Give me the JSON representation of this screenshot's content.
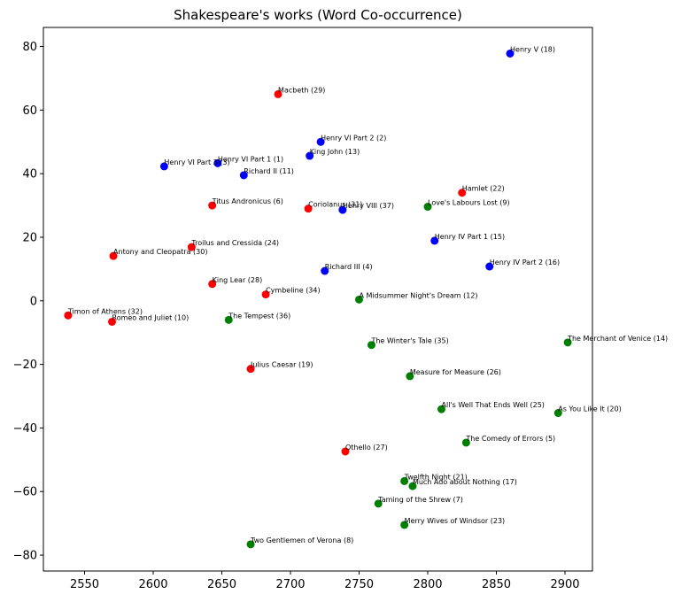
{
  "chart_data": {
    "type": "scatter",
    "title": "Shakespeare's works (Word Co-occurrence)",
    "xlabel": "",
    "ylabel": "",
    "xlim": [
      2520,
      2920
    ],
    "ylim": [
      -85,
      86
    ],
    "xticks": [
      2550,
      2600,
      2650,
      2700,
      2750,
      2800,
      2850,
      2900
    ],
    "yticks": [
      -80,
      -60,
      -40,
      -20,
      0,
      20,
      40,
      60,
      80
    ],
    "xtick_labels": [
      "2550",
      "2600",
      "2650",
      "2700",
      "2750",
      "2800",
      "2850",
      "2900"
    ],
    "ytick_labels": [
      "−80",
      "−60",
      "−40",
      "−20",
      "0",
      "20",
      "40",
      "60",
      "80"
    ],
    "grid": false,
    "legend": false,
    "colors": {
      "blue": "#0000ff",
      "red": "#ff0000",
      "green": "#008000"
    },
    "points": [
      {
        "label": "Henry V (18)",
        "x": 2860,
        "y": 77.8,
        "color": "blue"
      },
      {
        "label": "Macbeth (29)",
        "x": 2691,
        "y": 65,
        "color": "red"
      },
      {
        "label": "Henry VI Part 2 (2)",
        "x": 2722,
        "y": 50,
        "color": "blue"
      },
      {
        "label": "King John (13)",
        "x": 2714,
        "y": 45.6,
        "color": "blue"
      },
      {
        "label": "Henry VI Part 1 (1)",
        "x": 2647,
        "y": 43.3,
        "color": "blue"
      },
      {
        "label": "Henry VI Part 3 (3)",
        "x": 2608,
        "y": 42.3,
        "color": "blue"
      },
      {
        "label": "Richard II (11)",
        "x": 2666,
        "y": 39.5,
        "color": "blue"
      },
      {
        "label": "Hamlet (22)",
        "x": 2825,
        "y": 34,
        "color": "red"
      },
      {
        "label": "Titus Andronicus (6)",
        "x": 2643,
        "y": 30,
        "color": "red"
      },
      {
        "label": "Coriolanus (31)",
        "x": 2713,
        "y": 29,
        "color": "red"
      },
      {
        "label": "Henry VIII (37)",
        "x": 2738,
        "y": 28.6,
        "color": "blue"
      },
      {
        "label": "Love's Labours Lost (9)",
        "x": 2800,
        "y": 29.6,
        "color": "green"
      },
      {
        "label": "Henry IV Part 1 (15)",
        "x": 2805,
        "y": 18.9,
        "color": "blue"
      },
      {
        "label": "Troilus and Cressida (24)",
        "x": 2628,
        "y": 16.9,
        "color": "red"
      },
      {
        "label": "Antony and Cleopatra (30)",
        "x": 2571,
        "y": 14.1,
        "color": "red"
      },
      {
        "label": "Henry IV Part 2 (16)",
        "x": 2845,
        "y": 10.8,
        "color": "blue"
      },
      {
        "label": "Richard III (4)",
        "x": 2725,
        "y": 9.4,
        "color": "blue"
      },
      {
        "label": "King Lear (28)",
        "x": 2643,
        "y": 5.3,
        "color": "red"
      },
      {
        "label": "Cymbeline (34)",
        "x": 2682,
        "y": 2,
        "color": "red"
      },
      {
        "label": "A Midsummer Night's Dream (12)",
        "x": 2750,
        "y": 0.4,
        "color": "green"
      },
      {
        "label": "Timon of Athens (32)",
        "x": 2538,
        "y": -4.6,
        "color": "red"
      },
      {
        "label": "Romeo and Juliet (10)",
        "x": 2570,
        "y": -6.6,
        "color": "red"
      },
      {
        "label": "The Tempest (36)",
        "x": 2655,
        "y": -6,
        "color": "green"
      },
      {
        "label": "The Winter's Tale (35)",
        "x": 2759,
        "y": -13.9,
        "color": "green"
      },
      {
        "label": "The Merchant of Venice (14)",
        "x": 2902,
        "y": -13.1,
        "color": "green"
      },
      {
        "label": "Julius Caesar (19)",
        "x": 2671,
        "y": -21.4,
        "color": "red"
      },
      {
        "label": "Measure for Measure (26)",
        "x": 2787,
        "y": -23.7,
        "color": "green"
      },
      {
        "label": "All's Well That Ends Well (25)",
        "x": 2810,
        "y": -34.1,
        "color": "green"
      },
      {
        "label": "As You Like It (20)",
        "x": 2895,
        "y": -35.3,
        "color": "green"
      },
      {
        "label": "The Comedy of Errors (5)",
        "x": 2828,
        "y": -44.6,
        "color": "green"
      },
      {
        "label": "Othello (27)",
        "x": 2740,
        "y": -47.4,
        "color": "red"
      },
      {
        "label": "Twelfth Night (21)",
        "x": 2783,
        "y": -56.7,
        "color": "green"
      },
      {
        "label": "Much Ado about Nothing (17)",
        "x": 2789,
        "y": -58.3,
        "color": "green"
      },
      {
        "label": "Taming of the Shrew (7)",
        "x": 2764,
        "y": -63.8,
        "color": "green"
      },
      {
        "label": "Merry Wives of Windsor (23)",
        "x": 2783,
        "y": -70.5,
        "color": "green"
      },
      {
        "label": "Two Gentlemen of Verona (8)",
        "x": 2671,
        "y": -76.6,
        "color": "green"
      }
    ]
  }
}
